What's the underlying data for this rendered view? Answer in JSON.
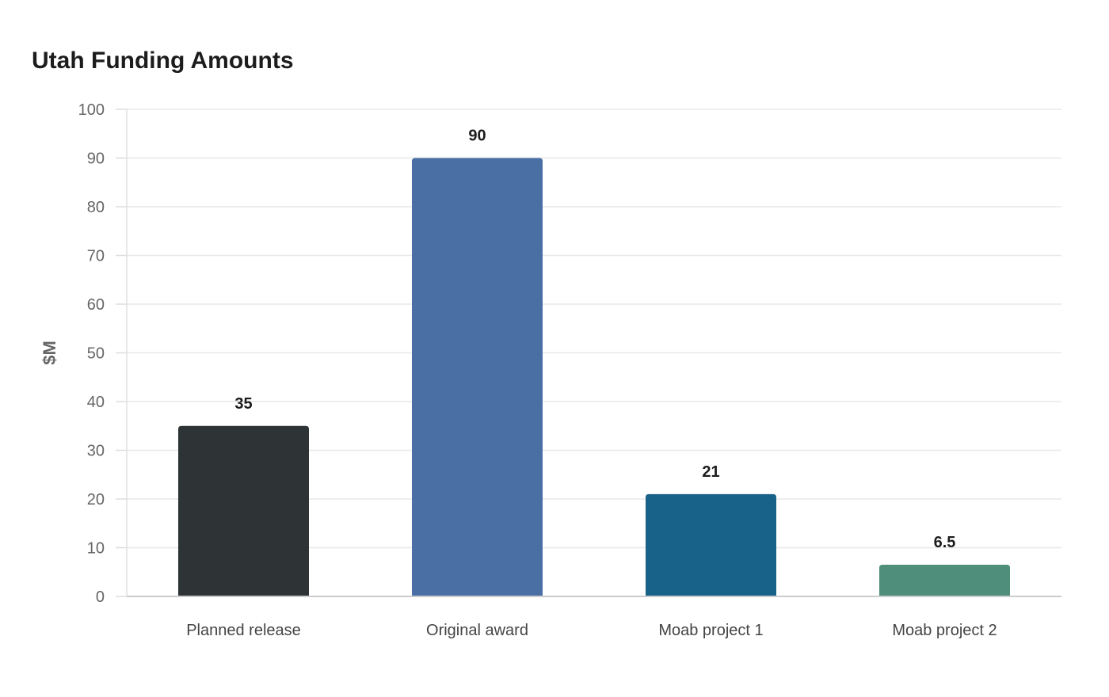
{
  "chart_data": {
    "type": "bar",
    "title": "Utah Funding Amounts",
    "xlabel": "",
    "ylabel": "$M",
    "categories": [
      "Planned release",
      "Original award",
      "Moab project 1",
      "Moab project 2"
    ],
    "values": [
      35,
      90,
      21,
      6.5
    ],
    "value_labels": [
      "35",
      "90",
      "21",
      "6.5"
    ],
    "colors": [
      "#2e3436",
      "#4a6fa5",
      "#186189",
      "#4e8e7b"
    ],
    "ylim": [
      0,
      100
    ],
    "yticks": [
      0,
      10,
      20,
      30,
      40,
      50,
      60,
      70,
      80,
      90,
      100
    ],
    "grid": true,
    "legend": "none"
  }
}
